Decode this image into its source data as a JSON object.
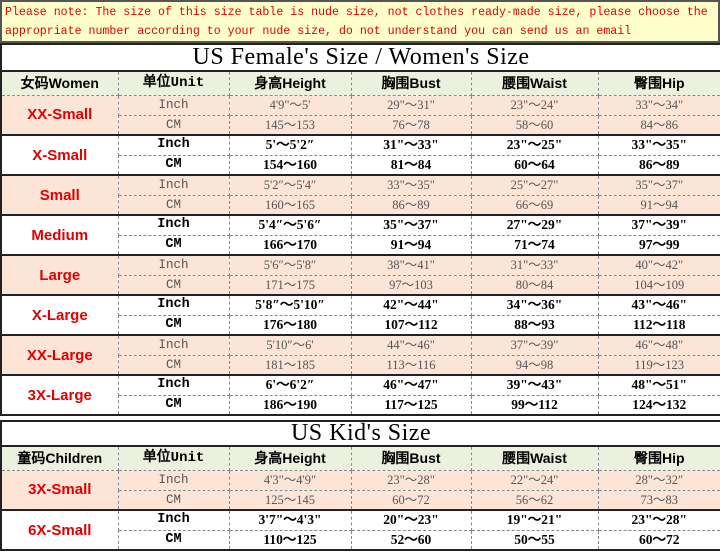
{
  "note": "Please note: The size of this size table is nude size, not clothes ready-made size, please choose the appropriate number according to your nude size, do not understand you can send us an email",
  "colors": {
    "note_bg": "#ffffcc",
    "note_text": "#e00000",
    "header_bg": "#ebf1de",
    "shaded_row": "#fce4d6",
    "size_label": "#e00000"
  },
  "women": {
    "title": "US Female's Size / Women's Size",
    "headers": [
      "女码Women",
      "单位Unit",
      "身高Height",
      "胸围Bust",
      "腰围Waist",
      "臀围Hip"
    ],
    "groups": [
      {
        "size": "XX-Small",
        "rows": [
          [
            "Inch",
            "4'9\"～5'",
            "29\"～31\"",
            "23\"～24\"",
            "33\"～34\""
          ],
          [
            "CM",
            "145～153",
            "76～78",
            "58～60",
            "84～86"
          ]
        ]
      },
      {
        "size": "X-Small",
        "rows": [
          [
            "Inch",
            "5'～5'2″",
            "31\"～33\"",
            "23\"～25\"",
            "33\"～35\""
          ],
          [
            "CM",
            "154～160",
            "81～84",
            "60～64",
            "86～89"
          ]
        ]
      },
      {
        "size": "Small",
        "rows": [
          [
            "Inch",
            "5'2″～5'4″",
            "33\"～35\"",
            "25\"～27\"",
            "35\"～37\""
          ],
          [
            "CM",
            "160～165",
            "86～89",
            "66～69",
            "91～94"
          ]
        ]
      },
      {
        "size": "Medium",
        "rows": [
          [
            "Inch",
            "5'4″～5'6″",
            "35\"～37\"",
            "27\"～29\"",
            "37\"～39\""
          ],
          [
            "CM",
            "166～170",
            "91～94",
            "71～74",
            "97～99"
          ]
        ]
      },
      {
        "size": "Large",
        "rows": [
          [
            "Inch",
            "5'6″～5'8″",
            "38\"～41\"",
            "31\"～33\"",
            "40\"～42\""
          ],
          [
            "CM",
            "171～175",
            "97～103",
            "80～84",
            "104～109"
          ]
        ]
      },
      {
        "size": "X-Large",
        "rows": [
          [
            "Inch",
            "5'8″～5'10″",
            "42\"～44\"",
            "34\"～36\"",
            "43\"～46\""
          ],
          [
            "CM",
            "176～180",
            "107～112",
            "88～93",
            "112～118"
          ]
        ]
      },
      {
        "size": "XX-Large",
        "rows": [
          [
            "Inch",
            "5'10″～6'",
            "44\"～46\"",
            "37\"～39\"",
            "46\"～48\""
          ],
          [
            "CM",
            "181～185",
            "113～116",
            "94～98",
            "119～123"
          ]
        ]
      },
      {
        "size": "3X-Large",
        "rows": [
          [
            "Inch",
            "6'～6'2″",
            "46\"～47\"",
            "39\"～43\"",
            "48\"～51\""
          ],
          [
            "CM",
            "186～190",
            "117～125",
            "99～112",
            "124～132"
          ]
        ]
      }
    ]
  },
  "kids": {
    "title": "US Kid's Size",
    "headers": [
      "童码Children",
      "单位Unit",
      "身高Height",
      "胸围Bust",
      "腰围Waist",
      "臀围Hip"
    ],
    "groups": [
      {
        "size": "3X-Small",
        "rows": [
          [
            "Inch",
            "4'3\"～4'9\"",
            "23\"～28\"",
            "22\"～24\"",
            "28\"～32\""
          ],
          [
            "CM",
            "125～145",
            "60～72",
            "56～62",
            "73～83"
          ]
        ]
      },
      {
        "size": "6X-Small",
        "rows": [
          [
            "Inch",
            "3'7\"～4'3\"",
            "20\"～23\"",
            "19\"～21\"",
            "23\"～28\""
          ],
          [
            "CM",
            "110～125",
            "52～60",
            "50～55",
            "60～72"
          ]
        ]
      }
    ]
  }
}
